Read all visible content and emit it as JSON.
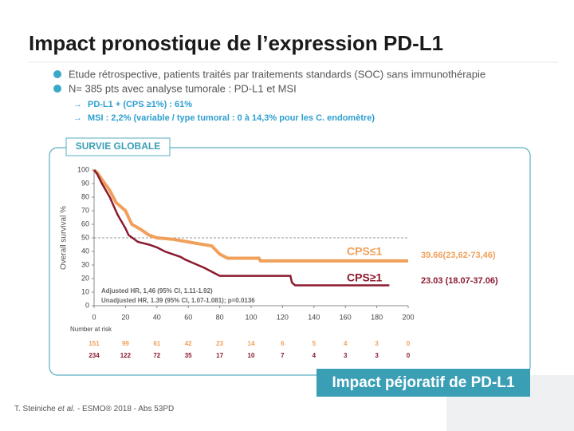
{
  "title": "Impact pronostique de l’expression PD-L1",
  "bullets": [
    "Etude rétrospective, patients traités par traitements standards (SOC) sans immunothérapie",
    "N= 385 pts avec analyse tumorale : PD-L1 et MSI"
  ],
  "sub_bullets": [
    "PD-L1 + (CPS ≥1%) : 61%",
    "MSI : 2,2% (variable / type tumoral : 0 à 14,3% pour les C. endomètre)"
  ],
  "box_label": "SURVIE GLOBALE",
  "banner": "Impact péjoratif de PD-L1",
  "footer": [
    "T. Steiniche ",
    "et al.",
    " - ESMO® 2018 -  Abs 53PD"
  ],
  "chart_data": {
    "type": "line",
    "ylabel": "Overall survival %",
    "xlim": [
      0,
      200
    ],
    "xticks": [
      0,
      20,
      40,
      60,
      80,
      100,
      120,
      140,
      160,
      180,
      200
    ],
    "ylim": [
      0,
      100
    ],
    "yticks": [
      0,
      10,
      20,
      30,
      40,
      50,
      60,
      70,
      80,
      90,
      100
    ],
    "reference_line": 50,
    "series": [
      {
        "name": "CPS≤1",
        "color": "#f0a05a",
        "end_label": "39.66(23,62-73,46)",
        "x": [
          0,
          2,
          5,
          10,
          14,
          20,
          24,
          30,
          35,
          40,
          50,
          60,
          70,
          75,
          80,
          85,
          105,
          106,
          200
        ],
        "values": [
          100,
          98,
          93,
          85,
          76,
          70,
          60,
          56,
          52,
          50,
          49,
          47,
          45,
          44,
          38,
          35,
          35,
          33,
          33
        ]
      },
      {
        "name": "CPS≥1",
        "color": "#8b1a2e",
        "end_label": "23.03 (18.07-37.06)",
        "x": [
          0,
          2,
          5,
          10,
          15,
          20,
          22,
          28,
          35,
          40,
          45,
          50,
          55,
          58,
          62,
          66,
          70,
          75,
          80,
          125,
          126,
          128,
          188
        ],
        "values": [
          100,
          97,
          90,
          80,
          67,
          57,
          52,
          47,
          45,
          43,
          40,
          38,
          36,
          34,
          32,
          30,
          28,
          25,
          22,
          22,
          17,
          15,
          15
        ]
      }
    ],
    "annotations": [
      "Adjusted HR, 1,46 (95% CI, 1.11-1.92)",
      "Unadjusted HR, 1.39 (95% CI, 1.07-1.081); p=0.0136"
    ],
    "risk_table": {
      "title": "Number at risk",
      "rows": [
        {
          "color": "#f0a05a",
          "values": [
            151,
            99,
            61,
            42,
            23,
            14,
            6,
            5,
            4,
            3,
            0
          ]
        },
        {
          "color": "#8b1a2e",
          "values": [
            234,
            122,
            72,
            35,
            17,
            10,
            7,
            4,
            3,
            3,
            0
          ]
        }
      ]
    }
  }
}
